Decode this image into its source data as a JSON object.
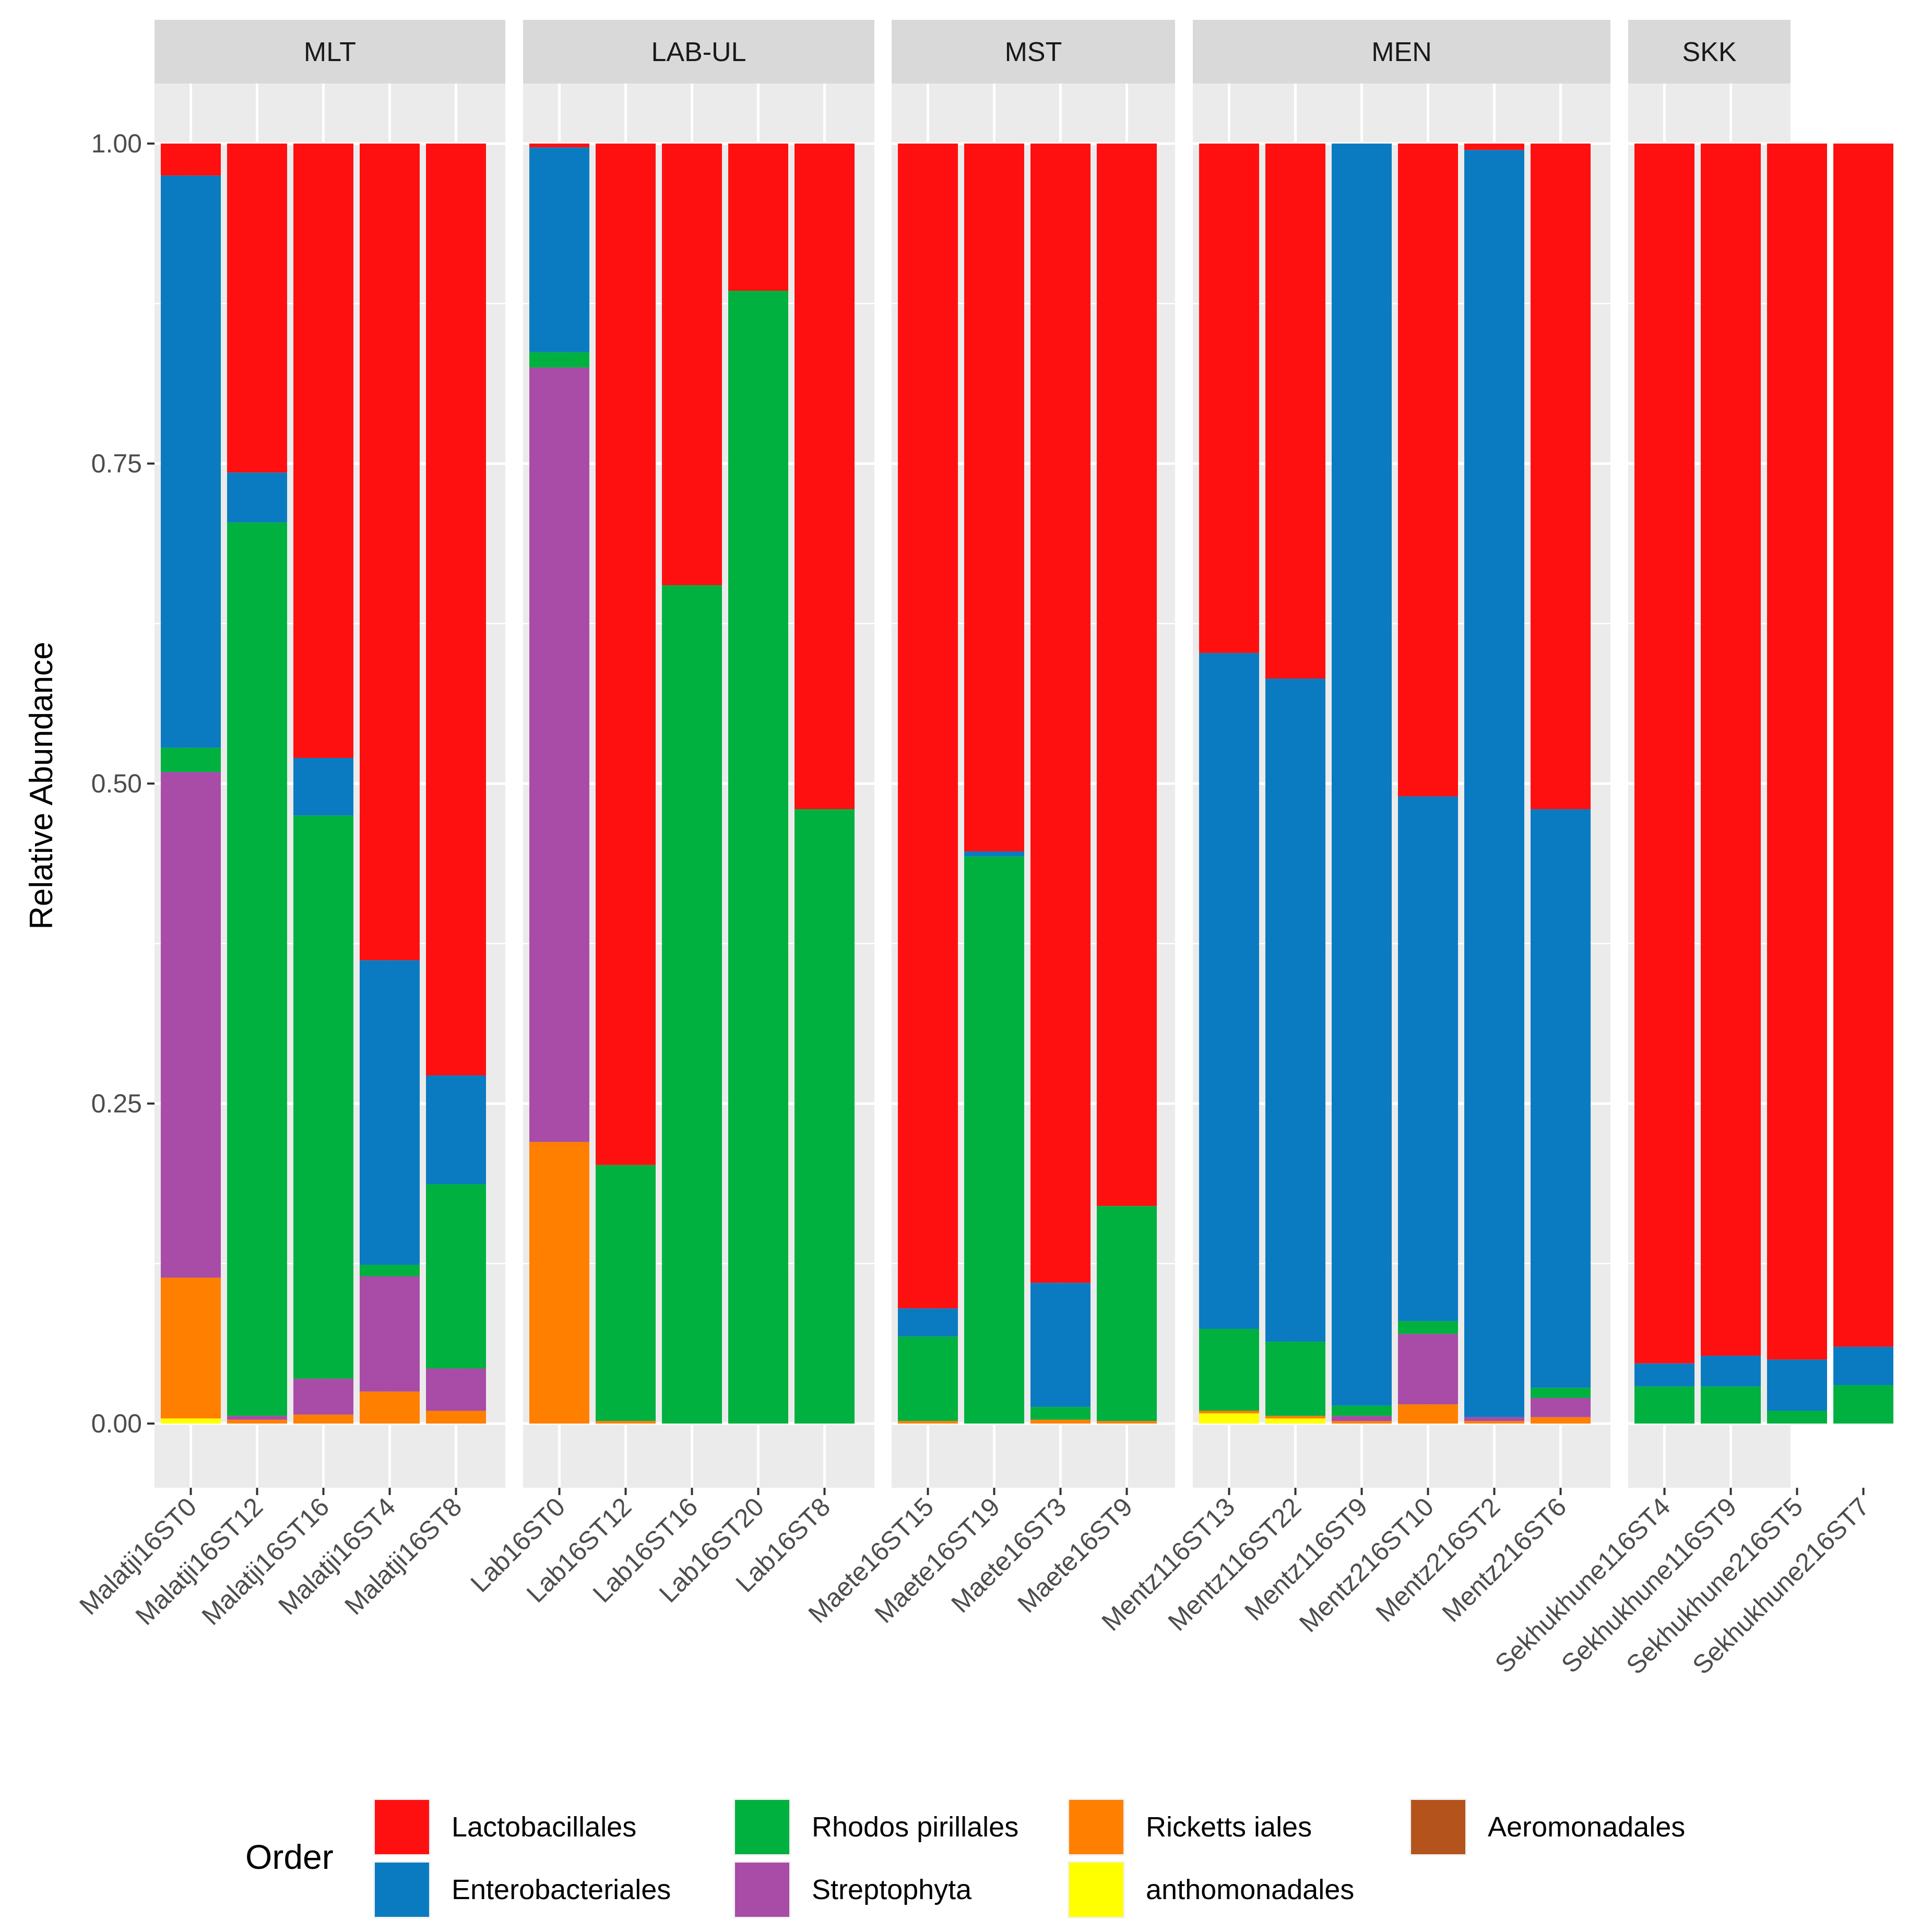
{
  "chart_data": {
    "type": "bar",
    "stacked": true,
    "ylabel": "Relative Abundance",
    "xlabel": "",
    "ylim": [
      0,
      1.05
    ],
    "yticks": [
      0.0,
      0.25,
      0.5,
      0.75,
      1.0
    ],
    "ytick_labels": [
      "0.00",
      "0.25",
      "0.50",
      "0.75",
      "1.00"
    ],
    "legend": {
      "title": "Order",
      "position": "bottom",
      "entries": [
        {
          "name": "Lactobacillales",
          "color": "#FF1010"
        },
        {
          "name": "Enterobacteriales",
          "color": "#0B7BC1"
        },
        {
          "name": "Rhodos pirillales",
          "color": "#00B140"
        },
        {
          "name": "Streptophyta",
          "color": "#A84CA8"
        },
        {
          "name": "Ricketts iales",
          "color": "#FF7F00"
        },
        {
          "name": "anthomonadales",
          "color": "#FFFF00"
        },
        {
          "name": "Aeromonadales",
          "color": "#B5531C"
        }
      ]
    },
    "stack_order": [
      "anthomonadales",
      "Ricketts iales",
      "Aeromonadales",
      "Streptophyta",
      "Rhodos pirillales",
      "Enterobacteriales",
      "Lactobacillales"
    ],
    "facets": [
      {
        "label": "MLT",
        "samples": [
          {
            "name": "Malatji16ST0",
            "values": {
              "anthomonadales": 0.004,
              "Ricketts iales": 0.11,
              "Aeromonadales": 0.0,
              "Streptophyta": 0.395,
              "Rhodos pirillales": 0.019,
              "Enterobacteriales": 0.447,
              "Lactobacillales": 0.025
            }
          },
          {
            "name": "Malatji16ST12",
            "values": {
              "anthomonadales": 0.0,
              "Ricketts iales": 0.003,
              "Aeromonadales": 0.0,
              "Streptophyta": 0.003,
              "Rhodos pirillales": 0.698,
              "Enterobacteriales": 0.039,
              "Lactobacillales": 0.257
            }
          },
          {
            "name": "Malatji16ST16",
            "values": {
              "anthomonadales": 0.0,
              "Ricketts iales": 0.007,
              "Aeromonadales": 0.0,
              "Streptophyta": 0.028,
              "Rhodos pirillales": 0.44,
              "Enterobacteriales": 0.045,
              "Lactobacillales": 0.48
            }
          },
          {
            "name": "Malatji16ST4",
            "values": {
              "anthomonadales": 0.0,
              "Ricketts iales": 0.025,
              "Aeromonadales": 0.0,
              "Streptophyta": 0.09,
              "Rhodos pirillales": 0.009,
              "Enterobacteriales": 0.238,
              "Lactobacillales": 0.638
            }
          },
          {
            "name": "Malatji16ST8",
            "values": {
              "anthomonadales": 0.0,
              "Ricketts iales": 0.01,
              "Aeromonadales": 0.0,
              "Streptophyta": 0.033,
              "Rhodos pirillales": 0.144,
              "Enterobacteriales": 0.085,
              "Lactobacillales": 0.728
            }
          }
        ]
      },
      {
        "label": "LAB-UL",
        "samples": [
          {
            "name": "Lab16ST0",
            "values": {
              "anthomonadales": 0.0,
              "Ricketts iales": 0.22,
              "Aeromonadales": 0.0,
              "Streptophyta": 0.605,
              "Rhodos pirillales": 0.012,
              "Enterobacteriales": 0.16,
              "Lactobacillales": 0.003
            }
          },
          {
            "name": "Lab16ST12",
            "values": {
              "anthomonadales": 0.0,
              "Ricketts iales": 0.002,
              "Aeromonadales": 0.0,
              "Streptophyta": 0.0,
              "Rhodos pirillales": 0.2,
              "Enterobacteriales": 0.0,
              "Lactobacillales": 0.798
            }
          },
          {
            "name": "Lab16ST16",
            "values": {
              "anthomonadales": 0.0,
              "Ricketts iales": 0.0,
              "Aeromonadales": 0.0,
              "Streptophyta": 0.0,
              "Rhodos pirillales": 0.655,
              "Enterobacteriales": 0.0,
              "Lactobacillales": 0.345
            }
          },
          {
            "name": "Lab16ST20",
            "values": {
              "anthomonadales": 0.0,
              "Ricketts iales": 0.0,
              "Aeromonadales": 0.0,
              "Streptophyta": 0.0,
              "Rhodos pirillales": 0.885,
              "Enterobacteriales": 0.0,
              "Lactobacillales": 0.115
            }
          },
          {
            "name": "Lab16ST8",
            "values": {
              "anthomonadales": 0.0,
              "Ricketts iales": 0.0,
              "Aeromonadales": 0.0,
              "Streptophyta": 0.0,
              "Rhodos pirillales": 0.48,
              "Enterobacteriales": 0.0,
              "Lactobacillales": 0.52
            }
          }
        ]
      },
      {
        "label": "MST",
        "samples": [
          {
            "name": "Maete16ST15",
            "values": {
              "anthomonadales": 0.0,
              "Ricketts iales": 0.002,
              "Aeromonadales": 0.0,
              "Streptophyta": 0.0,
              "Rhodos pirillales": 0.066,
              "Enterobacteriales": 0.022,
              "Lactobacillales": 0.91
            }
          },
          {
            "name": "Maete16ST19",
            "values": {
              "anthomonadales": 0.0,
              "Ricketts iales": 0.0,
              "Aeromonadales": 0.0,
              "Streptophyta": 0.0,
              "Rhodos pirillales": 0.443,
              "Enterobacteriales": 0.004,
              "Lactobacillales": 0.553
            }
          },
          {
            "name": "Maete16ST3",
            "values": {
              "anthomonadales": 0.0,
              "Ricketts iales": 0.003,
              "Aeromonadales": 0.0,
              "Streptophyta": 0.0,
              "Rhodos pirillales": 0.01,
              "Enterobacteriales": 0.097,
              "Lactobacillales": 0.89
            }
          },
          {
            "name": "Maete16ST9",
            "values": {
              "anthomonadales": 0.0,
              "Ricketts iales": 0.002,
              "Aeromonadales": 0.0,
              "Streptophyta": 0.0,
              "Rhodos pirillales": 0.168,
              "Enterobacteriales": 0.0,
              "Lactobacillales": 0.83
            }
          }
        ]
      },
      {
        "label": "MEN",
        "samples": [
          {
            "name": "Mentz116ST13",
            "values": {
              "anthomonadales": 0.008,
              "Ricketts iales": 0.002,
              "Aeromonadales": 0.0,
              "Streptophyta": 0.0,
              "Rhodos pirillales": 0.064,
              "Enterobacteriales": 0.528,
              "Lactobacillales": 0.398
            }
          },
          {
            "name": "Mentz116ST22",
            "values": {
              "anthomonadales": 0.004,
              "Ricketts iales": 0.002,
              "Aeromonadales": 0.0,
              "Streptophyta": 0.0,
              "Rhodos pirillales": 0.058,
              "Enterobacteriales": 0.518,
              "Lactobacillales": 0.418
            }
          },
          {
            "name": "Mentz116ST9",
            "values": {
              "anthomonadales": 0.0,
              "Ricketts iales": 0.002,
              "Aeromonadales": 0.0,
              "Streptophyta": 0.004,
              "Rhodos pirillales": 0.008,
              "Enterobacteriales": 0.986,
              "Lactobacillales": 0.0
            }
          },
          {
            "name": "Mentz216ST10",
            "values": {
              "anthomonadales": 0.0,
              "Ricketts iales": 0.015,
              "Aeromonadales": 0.0,
              "Streptophyta": 0.055,
              "Rhodos pirillales": 0.01,
              "Enterobacteriales": 0.41,
              "Lactobacillales": 0.51
            }
          },
          {
            "name": "Mentz216ST2",
            "values": {
              "anthomonadales": 0.0,
              "Ricketts iales": 0.002,
              "Aeromonadales": 0.0,
              "Streptophyta": 0.003,
              "Rhodos pirillales": 0.0,
              "Enterobacteriales": 0.99,
              "Lactobacillales": 0.005
            }
          },
          {
            "name": "Mentz216ST6",
            "values": {
              "anthomonadales": 0.0,
              "Ricketts iales": 0.005,
              "Aeromonadales": 0.0,
              "Streptophyta": 0.015,
              "Rhodos pirillales": 0.008,
              "Enterobacteriales": 0.452,
              "Lactobacillales": 0.52
            }
          }
        ]
      },
      {
        "label": "SKK",
        "samples": [
          {
            "name": "Sekhukhune116ST4",
            "values": {
              "anthomonadales": 0.0,
              "Ricketts iales": 0.0,
              "Aeromonadales": 0.0,
              "Streptophyta": 0.0,
              "Rhodos pirillales": 0.029,
              "Enterobacteriales": 0.018,
              "Lactobacillales": 0.953
            }
          },
          {
            "name": "Sekhukhune116ST9",
            "values": {
              "anthomonadales": 0.0,
              "Ricketts iales": 0.0,
              "Aeromonadales": 0.0,
              "Streptophyta": 0.0,
              "Rhodos pirillales": 0.029,
              "Enterobacteriales": 0.024,
              "Lactobacillales": 0.947
            }
          },
          {
            "name": "Sekhukhune216ST5",
            "values": {
              "anthomonadales": 0.0,
              "Ricketts iales": 0.0,
              "Aeromonadales": 0.0,
              "Streptophyta": 0.0,
              "Rhodos pirillales": 0.01,
              "Enterobacteriales": 0.04,
              "Lactobacillales": 0.95
            }
          },
          {
            "name": "Sekhukhune216ST7",
            "values": {
              "anthomonadales": 0.0,
              "Ricketts iales": 0.0,
              "Aeromonadales": 0.0,
              "Streptophyta": 0.0,
              "Rhodos pirillales": 0.03,
              "Enterobacteriales": 0.03,
              "Lactobacillales": 0.94
            }
          }
        ]
      }
    ]
  }
}
